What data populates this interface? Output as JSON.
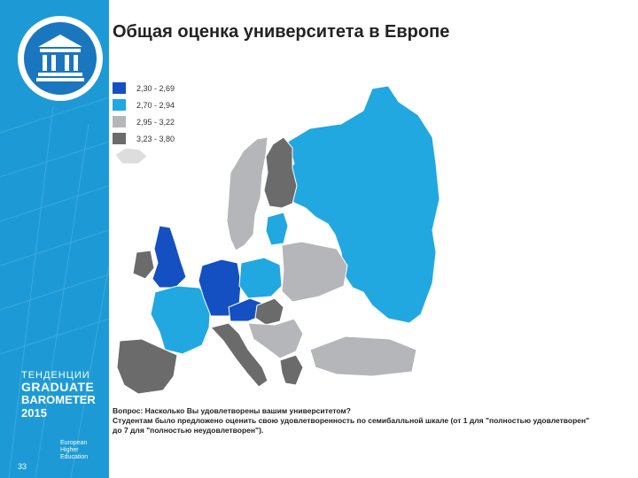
{
  "title": "Общая оценка университета в Европе",
  "legend": [
    {
      "label": "2,30 - 2,69",
      "color": "#1550c2"
    },
    {
      "label": "2,70 - 2,94",
      "color": "#21a8e0"
    },
    {
      "label": "2,95 - 3,22",
      "color": "#b4b6b9"
    },
    {
      "label": "3,23 - 3,80",
      "color": "#6b6b6b"
    }
  ],
  "question": {
    "line1": "Вопрос: Насколько Вы удовлетворены вашим университетом?",
    "line2": "Студентам было предложено оценить свою удовлетворенность по семибалльной шкале (от 1 для \"полностью удовлетворен\"",
    "line3": "до 7 для \"полностью неудовлетворен\")."
  },
  "brand": {
    "line1": "ТЕНДЕНЦИИ",
    "line2": "GRADUATE",
    "line3": "BAROMETER",
    "line4": "2015",
    "partner": [
      "European",
      "Higher",
      "Education"
    ]
  },
  "page_number": "33",
  "icons": {
    "logo": "university-building-icon"
  },
  "map_regions": {
    "russia": "#21a8e0",
    "finland": "#6b6b6b",
    "scandinavia": "#b4b6b9",
    "uk": "#1550c2",
    "ireland": "#6b6b6b",
    "france": "#21a8e0",
    "iberia": "#6b6b6b",
    "germany": "#1550c2",
    "poland": "#21a8e0",
    "baltics": "#21a8e0",
    "italy": "#6b6b6b",
    "balkans": "#b4b6b9",
    "austria": "#1550c2",
    "hungary": "#6b6b6b",
    "ukraine": "#b4b6b9",
    "turkey": "#b4b6b9",
    "greece": "#6b6b6b",
    "other": "#dddddd"
  }
}
